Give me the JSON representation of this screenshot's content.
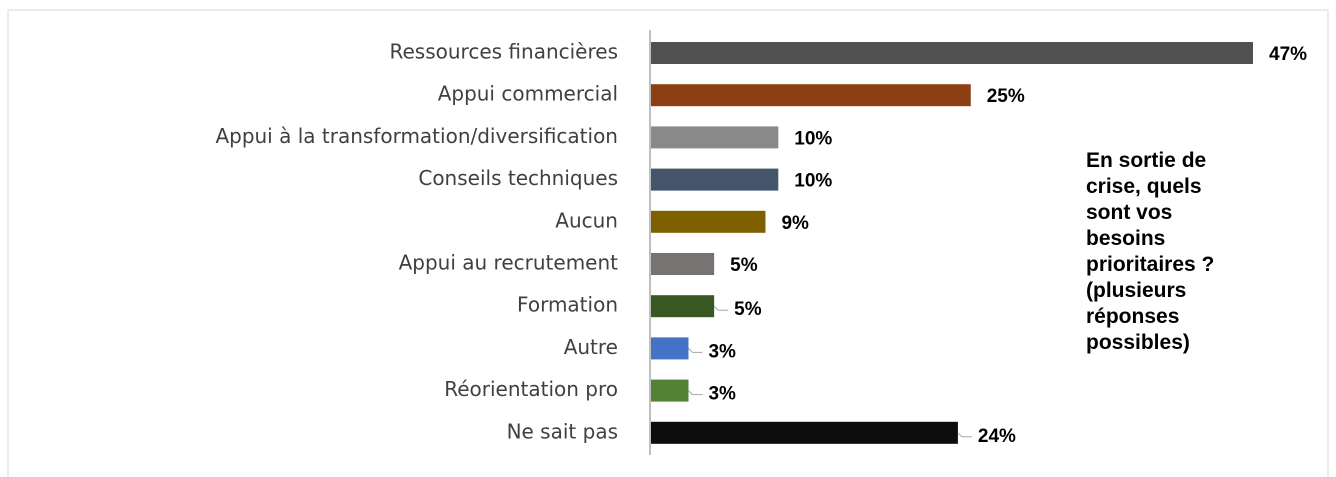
{
  "chart_data": {
    "type": "bar",
    "orientation": "horizontal",
    "title": "En sortie de crise, quels sont vos besoins prioritaires ? (plusieurs réponses possibles)",
    "categories": [
      "Ressources financières",
      "Appui commercial",
      "Appui à la transformation/diversification",
      "Conseils techniques",
      "Aucun",
      "Appui au recrutement",
      "Formation",
      "Autre",
      "Réorientation pro",
      "Ne sait pas"
    ],
    "values": [
      47,
      25,
      10,
      10,
      9,
      5,
      5,
      3,
      3,
      24
    ],
    "value_labels": [
      "47%",
      "25%",
      "10%",
      "10%",
      "9%",
      "5%",
      "5%",
      "3%",
      "3%",
      "24%"
    ],
    "colors": [
      "#515151",
      "#8b3f12",
      "#898989",
      "#44546a",
      "#7f6000",
      "#777373",
      "#385723",
      "#4472c4",
      "#548235",
      "#0d0d0d"
    ]
  }
}
